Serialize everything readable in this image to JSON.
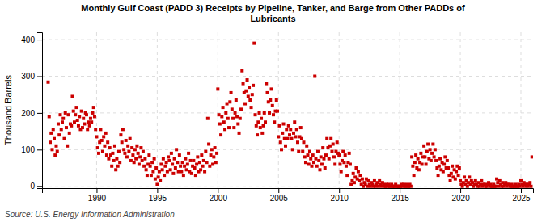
{
  "chart_data": {
    "type": "scatter",
    "title": "Monthly Gulf Coast (PADD 3) Receipts by Pipeline, Tanker, and Barge from Other PADDs of\nLubricants",
    "ylabel": "Thousand Barrels",
    "source": "Source: U.S. Energy Information Administration",
    "color": "#cc0000",
    "marker": "square",
    "grid": true,
    "xlim": [
      1985.5,
      2026.0
    ],
    "ylim": [
      -5,
      420
    ],
    "xticks": [
      1990,
      1995,
      2000,
      2005,
      2010,
      2015,
      2020,
      2025
    ],
    "yticks": [
      0,
      100,
      200,
      300,
      400
    ],
    "x": [
      1986,
      1986.0833333333333,
      1986.1666666666667,
      1986.25,
      1986.3333333333333,
      1986.4166666666667,
      1986.5,
      1986.5833333333333,
      1986.6666666666667,
      1986.75,
      1986.8333333333333,
      1986.9166666666667,
      1987,
      1987.0833333333333,
      1987.1666666666667,
      1987.25,
      1987.3333333333333,
      1987.4166666666667,
      1987.5,
      1987.5833333333333,
      1987.6666666666667,
      1987.75,
      1987.8333333333333,
      1987.9166666666667,
      1988,
      1988.0833333333333,
      1988.1666666666667,
      1988.25,
      1988.3333333333333,
      1988.4166666666667,
      1988.5,
      1988.5833333333333,
      1988.6666666666667,
      1988.75,
      1988.8333333333333,
      1988.9166666666667,
      1989,
      1989.0833333333333,
      1989.1666666666667,
      1989.25,
      1989.3333333333333,
      1989.4166666666667,
      1989.5,
      1989.5833333333333,
      1989.6666666666667,
      1989.75,
      1989.8333333333333,
      1989.9166666666667,
      1990,
      1990.0833333333333,
      1990.1666666666667,
      1990.25,
      1990.3333333333333,
      1990.4166666666667,
      1990.5,
      1990.5833333333333,
      1990.6666666666667,
      1990.75,
      1990.8333333333333,
      1990.9166666666667,
      1991,
      1991.0833333333333,
      1991.1666666666667,
      1991.25,
      1991.3333333333333,
      1991.4166666666667,
      1991.5,
      1991.5833333333333,
      1991.6666666666667,
      1991.75,
      1991.8333333333333,
      1991.9166666666667,
      1992,
      1992.0833333333333,
      1992.1666666666667,
      1992.25,
      1992.3333333333333,
      1992.4166666666667,
      1992.5,
      1992.5833333333333,
      1992.6666666666667,
      1992.75,
      1992.8333333333333,
      1992.9166666666667,
      1993,
      1993.0833333333333,
      1993.1666666666667,
      1993.25,
      1993.3333333333333,
      1993.4166666666667,
      1993.5,
      1993.5833333333333,
      1993.6666666666667,
      1993.75,
      1993.8333333333333,
      1993.9166666666667,
      1994,
      1994.0833333333333,
      1994.1666666666667,
      1994.25,
      1994.3333333333333,
      1994.4166666666667,
      1994.5,
      1994.5833333333333,
      1994.6666666666667,
      1994.75,
      1994.8333333333333,
      1994.9166666666667,
      1995,
      1995.0833333333333,
      1995.1666666666667,
      1995.25,
      1995.3333333333333,
      1995.4166666666667,
      1995.5,
      1995.5833333333333,
      1995.6666666666667,
      1995.75,
      1995.8333333333333,
      1995.9166666666667,
      1996,
      1996.0833333333333,
      1996.1666666666667,
      1996.25,
      1996.3333333333333,
      1996.4166666666667,
      1996.5,
      1996.5833333333333,
      1996.6666666666667,
      1996.75,
      1996.8333333333333,
      1996.9166666666667,
      1997,
      1997.0833333333333,
      1997.1666666666667,
      1997.25,
      1997.3333333333333,
      1997.4166666666667,
      1997.5,
      1997.5833333333333,
      1997.6666666666667,
      1997.75,
      1997.8333333333333,
      1997.9166666666667,
      1998,
      1998.0833333333333,
      1998.1666666666667,
      1998.25,
      1998.3333333333333,
      1998.4166666666667,
      1998.5,
      1998.5833333333333,
      1998.6666666666667,
      1998.75,
      1998.8333333333333,
      1998.9166666666667,
      1999,
      1999.0833333333333,
      1999.1666666666667,
      1999.25,
      1999.3333333333333,
      1999.4166666666667,
      1999.5,
      1999.5833333333333,
      1999.6666666666667,
      1999.75,
      1999.8333333333333,
      1999.9166666666667,
      2000,
      2000.0833333333333,
      2000.1666666666667,
      2000.25,
      2000.3333333333333,
      2000.4166666666667,
      2000.5,
      2000.5833333333333,
      2000.6666666666667,
      2000.75,
      2000.8333333333333,
      2000.9166666666667,
      2001,
      2001.0833333333333,
      2001.1666666666667,
      2001.25,
      2001.3333333333333,
      2001.4166666666667,
      2001.5,
      2001.5833333333333,
      2001.6666666666667,
      2001.75,
      2001.8333333333333,
      2001.9166666666667,
      2002,
      2002.0833333333333,
      2002.1666666666667,
      2002.25,
      2002.3333333333333,
      2002.4166666666667,
      2002.5,
      2002.5833333333333,
      2002.6666666666667,
      2002.75,
      2002.8333333333333,
      2002.9166666666667,
      2003,
      2003.0833333333333,
      2003.1666666666667,
      2003.25,
      2003.3333333333333,
      2003.4166666666667,
      2003.5,
      2003.5833333333333,
      2003.6666666666667,
      2003.75,
      2003.8333333333333,
      2003.9166666666667,
      2004,
      2004.0833333333333,
      2004.1666666666667,
      2004.25,
      2004.3333333333333,
      2004.4166666666667,
      2004.5,
      2004.5833333333333,
      2004.6666666666667,
      2004.75,
      2004.8333333333333,
      2004.9166666666667,
      2005,
      2005.0833333333333,
      2005.1666666666667,
      2005.25,
      2005.3333333333333,
      2005.4166666666667,
      2005.5,
      2005.5833333333333,
      2005.6666666666667,
      2005.75,
      2005.8333333333333,
      2005.9166666666667,
      2006,
      2006.0833333333333,
      2006.1666666666667,
      2006.25,
      2006.3333333333333,
      2006.4166666666667,
      2006.5,
      2006.5833333333333,
      2006.6666666666667,
      2006.75,
      2006.8333333333333,
      2006.9166666666667,
      2007,
      2007.0833333333333,
      2007.1666666666667,
      2007.25,
      2007.3333333333333,
      2007.4166666666667,
      2007.5,
      2007.5833333333333,
      2007.6666666666667,
      2007.75,
      2007.8333333333333,
      2007.9166666666667,
      2008,
      2008.0833333333333,
      2008.1666666666667,
      2008.25,
      2008.3333333333333,
      2008.4166666666667,
      2008.5,
      2008.5833333333333,
      2008.6666666666667,
      2008.75,
      2008.8333333333333,
      2008.9166666666667,
      2009,
      2009.0833333333333,
      2009.1666666666667,
      2009.25,
      2009.3333333333333,
      2009.4166666666667,
      2009.5,
      2009.5833333333333,
      2009.6666666666667,
      2009.75,
      2009.8333333333333,
      2009.9166666666667,
      2010,
      2010.0833333333333,
      2010.1666666666667,
      2010.25,
      2010.3333333333333,
      2010.4166666666667,
      2010.5,
      2010.5833333333333,
      2010.6666666666667,
      2010.75,
      2010.8333333333333,
      2010.9166666666667,
      2011,
      2011.0833333333333,
      2011.1666666666667,
      2011.25,
      2011.3333333333333,
      2011.4166666666667,
      2011.5,
      2011.5833333333333,
      2011.6666666666667,
      2011.75,
      2011.8333333333333,
      2011.9166666666667,
      2012,
      2012.0833333333333,
      2012.1666666666667,
      2012.25,
      2012.3333333333333,
      2012.4166666666667,
      2012.5,
      2012.5833333333333,
      2012.6666666666667,
      2012.75,
      2012.8333333333333,
      2012.9166666666667,
      2013,
      2013.0833333333333,
      2013.1666666666667,
      2013.25,
      2013.3333333333333,
      2013.4166666666667,
      2013.5,
      2013.5833333333333,
      2013.6666666666667,
      2013.75,
      2013.8333333333333,
      2013.9166666666667,
      2014,
      2014.0833333333333,
      2014.1666666666667,
      2014.25,
      2014.3333333333333,
      2014.4166666666667,
      2014.5,
      2014.5833333333333,
      2014.6666666666667,
      2014.75,
      2014.8333333333333,
      2014.9166666666667,
      2015,
      2015.0833333333333,
      2015.1666666666667,
      2015.25,
      2015.3333333333333,
      2015.4166666666667,
      2015.5,
      2015.5833333333333,
      2015.6666666666667,
      2015.75,
      2015.8333333333333,
      2015.9166666666667,
      2016,
      2016.0833333333333,
      2016.1666666666667,
      2016.25,
      2016.3333333333333,
      2016.4166666666667,
      2016.5,
      2016.5833333333333,
      2016.6666666666667,
      2016.75,
      2016.8333333333333,
      2016.9166666666667,
      2017,
      2017.0833333333333,
      2017.1666666666667,
      2017.25,
      2017.3333333333333,
      2017.4166666666667,
      2017.5,
      2017.5833333333333,
      2017.6666666666667,
      2017.75,
      2017.8333333333333,
      2017.9166666666667,
      2018,
      2018.0833333333333,
      2018.1666666666667,
      2018.25,
      2018.3333333333333,
      2018.4166666666667,
      2018.5,
      2018.5833333333333,
      2018.6666666666667,
      2018.75,
      2018.8333333333333,
      2018.9166666666667,
      2019,
      2019.0833333333333,
      2019.1666666666667,
      2019.25,
      2019.3333333333333,
      2019.4166666666667,
      2019.5,
      2019.5833333333333,
      2019.6666666666667,
      2019.75,
      2019.8333333333333,
      2019.9166666666667,
      2020,
      2020.0833333333333,
      2020.1666666666667,
      2020.25,
      2020.3333333333333,
      2020.4166666666667,
      2020.5,
      2020.5833333333333,
      2020.6666666666667,
      2020.75,
      2020.8333333333333,
      2020.9166666666667,
      2021,
      2021.0833333333333,
      2021.1666666666667,
      2021.25,
      2021.3333333333333,
      2021.4166666666667,
      2021.5,
      2021.5833333333333,
      2021.6666666666667,
      2021.75,
      2021.8333333333333,
      2021.9166666666667,
      2022,
      2022.0833333333333,
      2022.1666666666667,
      2022.25,
      2022.3333333333333,
      2022.4166666666667,
      2022.5,
      2022.5833333333333,
      2022.6666666666667,
      2022.75,
      2022.8333333333333,
      2022.9166666666667,
      2023,
      2023.0833333333333,
      2023.1666666666667,
      2023.25,
      2023.3333333333333,
      2023.4166666666667,
      2023.5,
      2023.5833333333333,
      2023.6666666666667,
      2023.75,
      2023.8333333333333,
      2023.9166666666667,
      2024,
      2024.0833333333333,
      2024.1666666666667,
      2024.25,
      2024.3333333333333,
      2024.4166666666667,
      2024.5,
      2024.5833333333333,
      2024.6666666666667,
      2024.75,
      2024.8333333333333,
      2024.9166666666667,
      2025,
      2025.0833333333333,
      2025.1666666666667,
      2025.25,
      2025.3333333333333,
      2025.4166666666667,
      2025.5,
      2025.5833333333333,
      2025.6666666666667,
      2025.75,
      2025.8333333333333,
      2025.9166666666667
    ],
    "values": [
      284,
      190,
      120,
      145,
      100,
      155,
      130,
      85,
      110,
      95,
      170,
      140,
      195,
      155,
      175,
      185,
      130,
      200,
      160,
      110,
      195,
      145,
      170,
      165,
      245,
      205,
      175,
      195,
      215,
      180,
      165,
      190,
      155,
      205,
      160,
      185,
      170,
      200,
      195,
      155,
      175,
      165,
      185,
      175,
      200,
      215,
      190,
      155,
      135,
      105,
      90,
      120,
      155,
      125,
      95,
      135,
      110,
      145,
      85,
      120,
      75,
      105,
      85,
      55,
      90,
      70,
      110,
      45,
      75,
      55,
      95,
      65,
      140,
      120,
      155,
      100,
      90,
      125,
      80,
      110,
      95,
      130,
      70,
      105,
      85,
      65,
      100,
      75,
      110,
      90,
      60,
      80,
      105,
      70,
      95,
      55,
      75,
      45,
      30,
      60,
      85,
      55,
      30,
      65,
      40,
      75,
      20,
      50,
      5,
      25,
      40,
      15,
      60,
      45,
      75,
      30,
      55,
      65,
      40,
      80,
      70,
      45,
      90,
      60,
      35,
      75,
      50,
      100,
      65,
      40,
      85,
      55,
      40,
      65,
      30,
      55,
      75,
      45,
      60,
      90,
      40,
      70,
      35,
      55,
      70,
      50,
      30,
      60,
      80,
      40,
      65,
      45,
      85,
      55,
      70,
      40,
      95,
      65,
      185,
      115,
      55,
      85,
      100,
      60,
      80,
      105,
      65,
      90,
      265,
      195,
      170,
      140,
      190,
      215,
      175,
      155,
      200,
      225,
      185,
      160,
      230,
      255,
      210,
      185,
      160,
      200,
      235,
      190,
      170,
      145,
      185,
      210,
      315,
      280,
      255,
      225,
      260,
      290,
      245,
      270,
      235,
      215,
      250,
      275,
      390,
      195,
      165,
      140,
      175,
      200,
      160,
      185,
      145,
      165,
      200,
      175,
      280,
      255,
      230,
      200,
      235,
      265,
      220,
      195,
      175,
      205,
      235,
      205,
      135,
      165,
      120,
      100,
      145,
      170,
      130,
      110,
      155,
      130,
      165,
      140,
      155,
      130,
      100,
      145,
      175,
      135,
      155,
      120,
      95,
      135,
      160,
      130,
      95,
      120,
      80,
      65,
      110,
      85,
      60,
      95,
      75,
      55,
      85,
      65,
      300,
      75,
      55,
      95,
      70,
      45,
      80,
      60,
      105,
      75,
      50,
      85,
      130,
      105,
      75,
      110,
      130,
      95,
      115,
      80,
      60,
      95,
      120,
      90,
      85,
      60,
      40,
      70,
      95,
      65,
      85,
      55,
      30,
      65,
      90,
      60,
      5,
      15,
      35,
      10,
      25,
      50,
      20,
      40,
      15,
      30,
      5,
      20,
      0,
      10,
      5,
      20,
      0,
      15,
      5,
      0,
      10,
      5,
      0,
      15,
      0,
      5,
      10,
      0,
      15,
      5,
      0,
      10,
      5,
      0,
      0,
      5,
      0,
      5,
      0,
      0,
      5,
      0,
      0,
      0,
      5,
      0,
      0,
      0,
      0,
      0,
      5,
      0,
      5,
      0,
      0,
      5,
      0,
      0,
      5,
      0,
      80,
      55,
      30,
      65,
      85,
      50,
      75,
      45,
      65,
      90,
      60,
      80,
      110,
      80,
      60,
      95,
      115,
      75,
      100,
      70,
      90,
      115,
      80,
      100,
      70,
      50,
      30,
      55,
      75,
      45,
      65,
      40,
      60,
      80,
      50,
      70,
      50,
      30,
      15,
      35,
      55,
      25,
      45,
      20,
      40,
      55,
      30,
      50,
      15,
      5,
      0,
      10,
      25,
      5,
      15,
      0,
      10,
      25,
      5,
      15,
      10,
      0,
      5,
      15,
      5,
      0,
      10,
      0,
      5,
      15,
      0,
      5,
      5,
      0,
      0,
      5,
      10,
      0,
      5,
      0,
      0,
      5,
      0,
      0,
      20,
      10,
      0,
      15,
      5,
      0,
      10,
      0,
      5,
      10,
      0,
      5,
      5,
      0,
      0,
      5,
      0,
      0,
      0,
      5,
      0,
      0,
      5,
      0,
      15,
      5,
      0,
      10,
      5,
      0,
      5,
      0,
      5,
      10,
      0,
      80
    ]
  }
}
